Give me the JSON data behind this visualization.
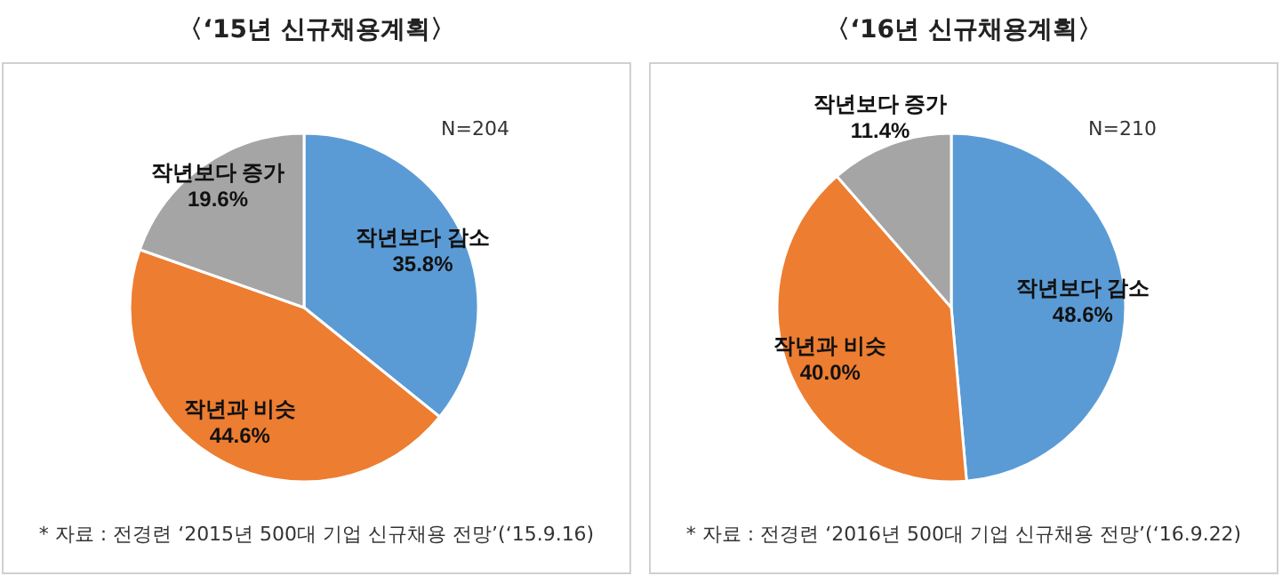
{
  "chart_data": [
    {
      "type": "pie",
      "title": "〈‘15년 신규채용계획〉",
      "categories": [
        "작년보다 감소",
        "작년과 비슷",
        "작년보다 증가"
      ],
      "values": [
        35.8,
        44.6,
        19.6
      ],
      "colors": [
        "#5b9bd5",
        "#ed7d31",
        "#a5a5a5"
      ],
      "value_labels": [
        "35.8%",
        "44.6%",
        "19.6%"
      ],
      "legend": false,
      "annotations": [
        "N=204",
        "* 자료 : 전경련 ‘2015년 500대 기업 신규채용 전망’(‘15.9.16)"
      ]
    },
    {
      "type": "pie",
      "title": "〈‘16년 신규채용계획〉",
      "categories": [
        "작년보다 감소",
        "작년과 비슷",
        "작년보다 증가"
      ],
      "values": [
        48.6,
        40.0,
        11.4
      ],
      "colors": [
        "#5b9bd5",
        "#ed7d31",
        "#a5a5a5"
      ],
      "value_labels": [
        "48.6%",
        "40.0%",
        "11.4%"
      ],
      "legend": false,
      "annotations": [
        "N=210",
        "* 자료 : 전경련 ‘2016년 500대 기업 신규채용 전망’(‘16.9.22)"
      ]
    }
  ]
}
